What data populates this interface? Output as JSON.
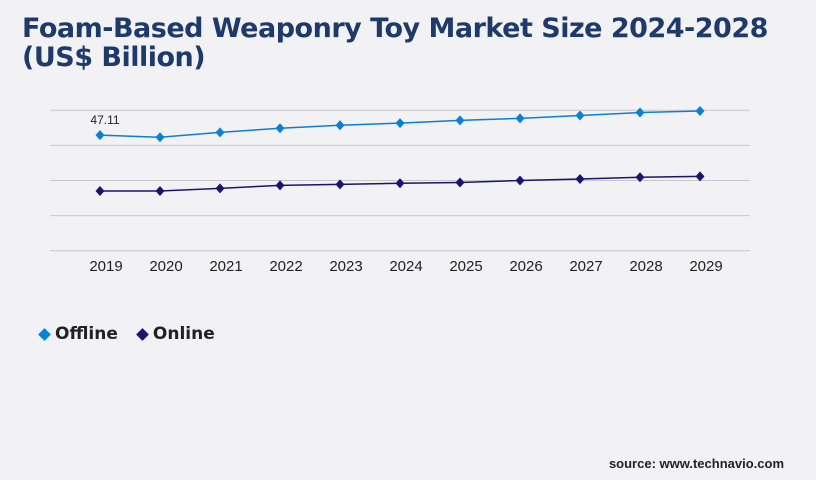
{
  "chart_data": {
    "type": "line",
    "title": "Foam-Based Weaponry Toy Market Size 2024-2028 (US$ Billion)",
    "categories": [
      "2019",
      "2020",
      "2021",
      "2022",
      "2023",
      "2024",
      "2025",
      "2026",
      "2027",
      "2028",
      "2029"
    ],
    "series": [
      {
        "name": "Offline",
        "color": "#0a7fd6",
        "values": [
          47.11,
          46.2,
          48.2,
          49.9,
          51.1,
          52.0,
          53.1,
          53.9,
          55.1,
          56.3,
          56.9
        ]
      },
      {
        "name": "Online",
        "color": "#1a1470",
        "values": [
          24.3,
          24.3,
          25.4,
          26.6,
          27.0,
          27.5,
          27.8,
          28.6,
          29.2,
          29.9,
          30.3
        ]
      }
    ],
    "data_labels": [
      {
        "series": "Offline",
        "category": "2019",
        "text": "47.11"
      }
    ],
    "ylim": [
      0,
      57.2
    ],
    "grid": true,
    "legend": "bottom-left"
  },
  "source": "source: www.technavio.com"
}
